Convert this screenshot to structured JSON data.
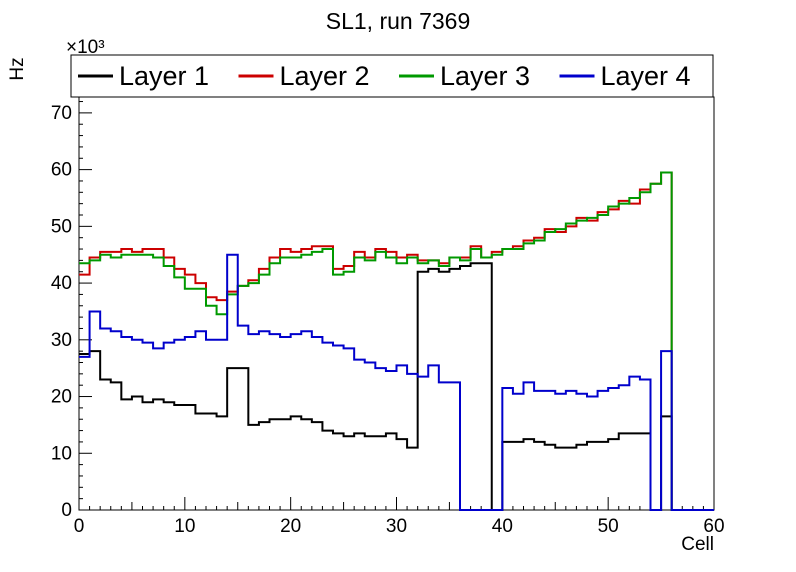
{
  "chart_data": {
    "type": "line",
    "style": "step-histogram",
    "title": "SL1, run 7369",
    "xlabel": "Cell",
    "ylabel": "Hz",
    "y_multiplier": "×10³",
    "units": "values are in ×10³ Hz",
    "xlim": [
      0,
      60
    ],
    "ylim": [
      0,
      72.8
    ],
    "x_ticks": [
      0,
      10,
      20,
      30,
      40,
      50,
      60
    ],
    "y_ticks": [
      0,
      10,
      20,
      30,
      40,
      50,
      60,
      70
    ],
    "bin_width": 1,
    "grid": false,
    "legend_position": "top",
    "frame_color": "#000000",
    "background_color": "#ffffff",
    "series": [
      {
        "name": "Layer 1",
        "color": "#000000",
        "values": [
          27.5,
          28,
          23,
          22.5,
          19.5,
          20,
          19,
          19.5,
          19,
          18.5,
          18.5,
          17,
          17,
          16.5,
          25,
          25,
          15,
          15.5,
          16,
          16,
          16.5,
          16,
          15.5,
          14,
          13.5,
          13,
          13.5,
          13,
          13,
          13.5,
          12.5,
          11,
          42,
          42.5,
          42,
          42.5,
          43,
          43.5,
          43.5,
          0,
          12,
          12,
          12.5,
          12,
          11.5,
          11,
          11,
          11.5,
          12,
          12,
          12.5,
          13.5,
          13.5,
          13.5,
          0,
          16.5,
          0,
          0,
          0,
          0
        ]
      },
      {
        "name": "Layer 2",
        "color": "#cc0000",
        "values": [
          41.5,
          44.5,
          45.5,
          45.5,
          46,
          45.5,
          46,
          46,
          44.5,
          42.5,
          41.5,
          40,
          37.5,
          37,
          38.5,
          39.5,
          40.5,
          42.5,
          44.5,
          46,
          45.5,
          46,
          46.5,
          46.5,
          42.5,
          43,
          45.5,
          44.5,
          46,
          45.5,
          44.5,
          45,
          44,
          44,
          43.5,
          44.5,
          44.5,
          46.5,
          44.5,
          45.5,
          46,
          46.5,
          47.5,
          48,
          49.5,
          49,
          50,
          51.5,
          51,
          52.5,
          53,
          54.5,
          54,
          56.5,
          57.5,
          59.5,
          0,
          0,
          0,
          0
        ]
      },
      {
        "name": "Layer 3",
        "color": "#009900",
        "values": [
          43.5,
          44,
          45,
          44.5,
          45,
          45,
          45,
          44.5,
          43,
          41,
          39,
          39,
          36,
          34.5,
          38,
          39.5,
          40,
          41.5,
          43.5,
          44.5,
          44.5,
          45,
          45.5,
          46,
          41.5,
          42,
          44.5,
          44,
          45.5,
          44.5,
          43.5,
          44.5,
          43.5,
          44,
          43,
          44.5,
          44,
          46,
          44.5,
          45,
          46,
          46,
          47,
          47.5,
          49,
          49.5,
          50.5,
          51,
          51.5,
          52,
          53.5,
          54,
          55,
          56,
          57.5,
          59.5,
          0,
          0,
          0,
          0
        ]
      },
      {
        "name": "Layer 4",
        "color": "#0000cc",
        "values": [
          27,
          35,
          32,
          31.5,
          30.5,
          30,
          29.5,
          28.5,
          29.5,
          30,
          30.5,
          31.5,
          30,
          30,
          45,
          32.5,
          31,
          31.5,
          31,
          30.5,
          31,
          31.5,
          30.5,
          29.5,
          29,
          28.5,
          26.5,
          26,
          25,
          24.5,
          25.5,
          24,
          23.5,
          25.5,
          22.5,
          22.5,
          0,
          0,
          0,
          0,
          21.5,
          20.5,
          22.5,
          21,
          21,
          20.5,
          21,
          20.5,
          20,
          21,
          21.5,
          22,
          23.5,
          23,
          0,
          28,
          0,
          0,
          0,
          0
        ]
      }
    ]
  }
}
